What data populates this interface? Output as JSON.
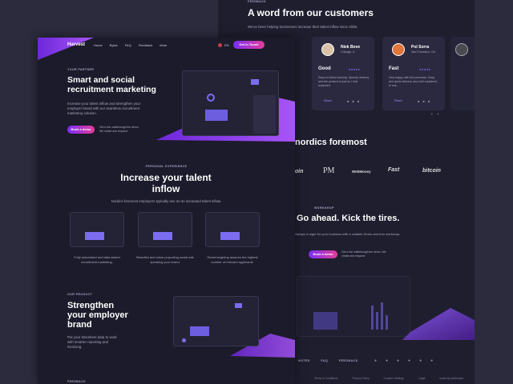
{
  "back_page": {
    "feedback": {
      "eyebrow": "FEEDBACK",
      "title": "A word from our customers",
      "subtitle": "We've been helping businesses increase their talent inflow since 2005.",
      "reviews": [
        {
          "name": "Niek Bove",
          "location": "Chicago, IL",
          "headline": "Good",
          "text": "Easy to follow tracking. Speedy delivery and the product is just as I had expected.",
          "link": "Read"
        },
        {
          "name": "Pol Sorra",
          "location": "San Francisco, CA",
          "headline": "Fast",
          "text": "Very happy with the purchase. Easy and quick delivery very well explained to use.",
          "link": "Read"
        }
      ]
    },
    "logos": {
      "title": "nordics foremost",
      "items": [
        "coin",
        "PM",
        "WebMoney",
        "Fast",
        "bitcoin"
      ]
    },
    "cta": {
      "eyebrow": "WORKSHOP",
      "title": "Go ahead. Kick the tires.",
      "text": "Always in sight for your business with a suitable Demo and free workshop.",
      "button": "Book a demo",
      "note": "Get a live walkthrough the demo. We create and respond"
    },
    "footer": {
      "links": [
        "NOTES",
        "FAQ",
        "FEEDBACK"
      ],
      "legal": [
        "Terms & Conditions",
        "Privacy Policy",
        "Cookies Settings",
        "Legal",
        "made by webkinsee"
      ]
    }
  },
  "front_page": {
    "nav": {
      "brand": "Harvest",
      "items": [
        "Home",
        "Bytes",
        "FAQ",
        "Feedback",
        "More"
      ],
      "language": "EN",
      "button": "Get in Touch"
    },
    "hero": {
      "eyebrow": "YOUR PARTNER",
      "title": "Smart and social recruitment marketing",
      "text": "Increase your talent inflow and strengthen your employer brand with our seamless recruitment marketing solution.",
      "button": "Book a demo",
      "note": "Get a live walkthrough the demo. We create and respond"
    },
    "talent": {
      "eyebrow": "PERSONAL EXPERIENCE",
      "title": "Increase your talent inflow",
      "subtitle": "Nordics foremost employers typically see 2x-4x increased talent inflow.",
      "features": [
        "Fully automated and data-based recruitment marketing.",
        "Beautiful and value proposing social ads speaking your brand.",
        "Smart targeting assures the highest number of relevant applicants."
      ]
    },
    "product": {
      "eyebrow": "OUR PRODUCT",
      "title": "Strengthen your employer brand",
      "text": "Put your timesheet data to work with smarter reporting and invoicing."
    },
    "next_eyebrow": "FEEDBACK"
  }
}
